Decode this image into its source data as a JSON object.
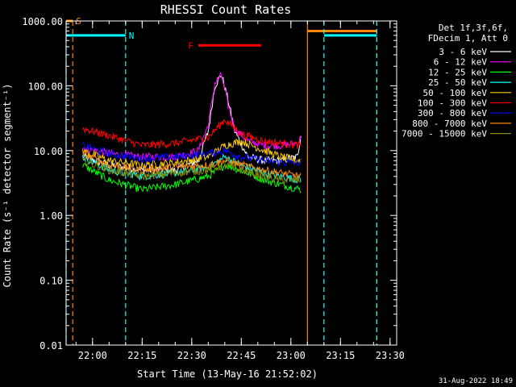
{
  "chart_data": {
    "type": "line",
    "title": "RHESSI Count Rates",
    "xlabel": "Start Time (13-May-16 21:52:02)",
    "ylabel": "Count Rate (s⁻¹ detector segment⁻¹)",
    "y_scale": "log",
    "ylim": [
      0.01,
      1000
    ],
    "xlim": [
      "21:52",
      "23:32"
    ],
    "x_ticks": [
      "22:00",
      "22:15",
      "22:30",
      "22:45",
      "23:00",
      "23:15",
      "23:30"
    ],
    "y_ticks": [
      "1000.00",
      "100.00",
      "10.00",
      "1.00",
      "0.10",
      "0.01"
    ],
    "legend_header": [
      "Det 1f,3f,6f,",
      "FDecim 1, Att 0"
    ],
    "series": [
      {
        "name": "3 - 6 keV",
        "color": "#ffffff",
        "x": [
          "21:57",
          "22:05",
          "22:15",
          "22:25",
          "22:32",
          "22:35",
          "22:37",
          "22:39",
          "22:41",
          "22:43",
          "22:47",
          "22:52",
          "22:57",
          "23:02",
          "23:03"
        ],
        "y": [
          8,
          6,
          5,
          5,
          7,
          20,
          100,
          150,
          60,
          20,
          8,
          7,
          7,
          8,
          18
        ]
      },
      {
        "name": "6 - 12 keV",
        "color": "#ff00ff",
        "x": [
          "21:57",
          "22:05",
          "22:15",
          "22:25",
          "22:32",
          "22:35",
          "22:37",
          "22:39",
          "22:41",
          "22:43",
          "22:47",
          "22:52",
          "22:57",
          "23:02",
          "23:03"
        ],
        "y": [
          11,
          9,
          8,
          8,
          10,
          25,
          110,
          145,
          50,
          22,
          14,
          12,
          12,
          13,
          16
        ]
      },
      {
        "name": "12 - 25 keV",
        "color": "#00ff00",
        "x": [
          "21:57",
          "22:05",
          "22:15",
          "22:25",
          "22:35",
          "22:40",
          "22:45",
          "22:52",
          "22:57",
          "23:03"
        ],
        "y": [
          6,
          3.5,
          2.5,
          3,
          4,
          6,
          5,
          3.5,
          3,
          2.5
        ]
      },
      {
        "name": "25 - 50 keV",
        "color": "#00ffff",
        "x": [
          "21:57",
          "22:05",
          "22:15",
          "22:25",
          "22:35",
          "22:40",
          "22:45",
          "22:52",
          "22:57",
          "23:03"
        ],
        "y": [
          8,
          5,
          4,
          4.5,
          5.5,
          8,
          6,
          4.5,
          4,
          3.5
        ]
      },
      {
        "name": "50 - 100 keV",
        "color": "#ffcc00",
        "x": [
          "21:57",
          "22:05",
          "22:15",
          "22:25",
          "22:35",
          "22:40",
          "22:45",
          "22:52",
          "22:57",
          "23:03"
        ],
        "y": [
          10,
          7,
          6,
          6.5,
          8,
          12,
          14,
          10,
          8,
          7
        ]
      },
      {
        "name": "100 - 300 keV",
        "color": "#ff0000",
        "x": [
          "21:57",
          "22:05",
          "22:15",
          "22:25",
          "22:35",
          "22:40",
          "22:45",
          "22:52",
          "22:57",
          "23:03"
        ],
        "y": [
          22,
          17,
          12,
          13,
          16,
          30,
          18,
          14,
          13,
          12
        ]
      },
      {
        "name": "300 - 800 keV",
        "color": "#0000ff",
        "x": [
          "21:57",
          "22:05",
          "22:15",
          "22:25",
          "22:35",
          "22:40",
          "22:45",
          "22:52",
          "22:57",
          "23:03"
        ],
        "y": [
          12,
          9,
          7.5,
          8,
          9,
          10,
          8,
          7,
          6.5,
          6.5
        ]
      },
      {
        "name": "800 - 7000 keV",
        "color": "#ff8800",
        "x": [
          "21:57",
          "22:05",
          "22:15",
          "22:25",
          "22:35",
          "22:40",
          "22:45",
          "22:52",
          "22:57",
          "23:03"
        ],
        "y": [
          9,
          6,
          5,
          5.5,
          6,
          7,
          6,
          5,
          4.5,
          4
        ]
      },
      {
        "name": "7000 - 15000 keV",
        "color": "#888800",
        "x": [
          "21:57",
          "22:05",
          "22:15",
          "22:25",
          "22:35",
          "22:40",
          "22:45",
          "22:52",
          "22:57",
          "23:03"
        ],
        "y": [
          7,
          5,
          4,
          4.5,
          5,
          6,
          5,
          4,
          3.5,
          3.5
        ]
      }
    ],
    "annotations": [
      {
        "label": "S",
        "kind": "saa",
        "color": "#ff8800",
        "line_times": [
          "21:54"
        ],
        "bar": [
          "21:52",
          "21:54"
        ],
        "bar_level": 1000
      },
      {
        "label": "N",
        "kind": "night",
        "color": "#00ffff",
        "line_times": [
          "21:52",
          "22:10"
        ],
        "bar": [
          "21:52",
          "22:10"
        ],
        "bar_level": 600
      },
      {
        "label": "F",
        "kind": "flare",
        "color": "#ff0000",
        "bar": [
          "22:32",
          "22:51"
        ],
        "bar_level": 420
      },
      {
        "kind": "saa",
        "color": "#ff8800",
        "line_times": [
          "23:05",
          "23:26"
        ],
        "bar": [
          "23:05",
          "23:26"
        ],
        "bar_level": 700
      },
      {
        "kind": "night",
        "color": "#00ffff",
        "line_times": [
          "23:10",
          "23:26"
        ],
        "bar": [
          "23:10",
          "23:26"
        ],
        "bar_level": 600
      }
    ],
    "grid": false,
    "legend_position": "right"
  },
  "footer": {
    "timestamp": "31-Aug-2022 18:49"
  }
}
